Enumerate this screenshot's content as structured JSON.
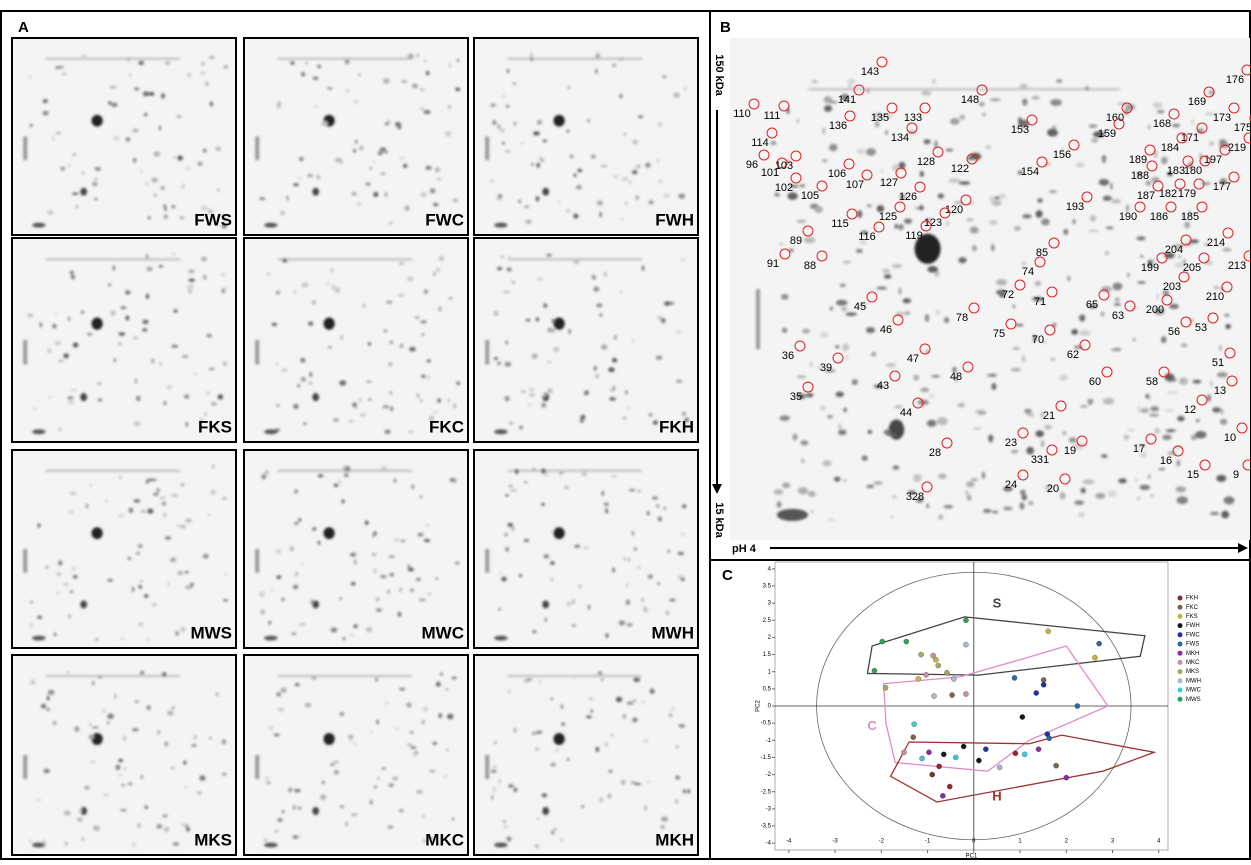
{
  "panel_a": {
    "label": "A",
    "gels": [
      "FWS",
      "FWC",
      "FWH",
      "FKS",
      "FKC",
      "FKH",
      "MWS",
      "MWC",
      "MWH",
      "MKS",
      "MKC",
      "MKH"
    ]
  },
  "panel_b": {
    "label": "B",
    "mw_top": "150 kDa",
    "mw_bottom": "15 kDa",
    "ph_start": "pH 4",
    "spots": [
      "143",
      "148",
      "176",
      "110",
      "111",
      "141",
      "135",
      "133",
      "136",
      "134",
      "169",
      "173",
      "175",
      "168",
      "160",
      "159",
      "153",
      "154",
      "156",
      "114",
      "171",
      "219",
      "184",
      "197",
      "96",
      "128",
      "122",
      "189",
      "188",
      "183",
      "180",
      "101",
      "103",
      "106",
      "102",
      "105",
      "107",
      "127",
      "126",
      "182",
      "179",
      "177",
      "187",
      "193",
      "190",
      "186",
      "185",
      "120",
      "125",
      "123",
      "115",
      "116",
      "119",
      "89",
      "91",
      "88",
      "85",
      "74",
      "214",
      "204",
      "199",
      "205",
      "213",
      "203",
      "72",
      "71",
      "65",
      "63",
      "200",
      "210",
      "45",
      "46",
      "78",
      "75",
      "70",
      "56",
      "53",
      "36",
      "39",
      "47",
      "62",
      "51",
      "43",
      "48",
      "60",
      "58",
      "13",
      "35",
      "44",
      "12",
      "21",
      "10",
      "23",
      "28",
      "19",
      "17",
      "16",
      "331",
      "15",
      "9",
      "24",
      "20",
      "328"
    ]
  },
  "chart_data": {
    "type": "scatter",
    "panel_label": "C",
    "xlabel": "PC1",
    "ylabel": "PC2",
    "xlim": [
      -4.3,
      4.2
    ],
    "ylim": [
      -4.2,
      4.2
    ],
    "xticks": [
      -4,
      -3,
      -2,
      -1,
      0,
      1,
      2,
      3,
      4
    ],
    "yticks": [
      -4,
      -3.5,
      -3,
      -2.5,
      -2,
      -1.5,
      -1,
      -0.5,
      0,
      0.5,
      1,
      1.5,
      2,
      2.5,
      3,
      3.5,
      4
    ],
    "group_labels": [
      "S",
      "C",
      "H"
    ],
    "series": [
      {
        "name": "FKH",
        "color": "#8b2a2a",
        "x": [
          -0.52,
          -0.9,
          -0.75,
          0.9
        ],
        "values": [
          -2.35,
          -2.0,
          -1.76,
          -1.38
        ]
      },
      {
        "name": "FKC",
        "color": "#7a6650",
        "x": [
          -1.31,
          1.78,
          -0.47,
          1.51
        ],
        "values": [
          -0.91,
          -1.74,
          0.32,
          0.76
        ]
      },
      {
        "name": "FKS",
        "color": "#c8b040",
        "x": [
          1.61,
          2.62,
          -1.2,
          -0.82
        ],
        "values": [
          2.18,
          1.41,
          0.79,
          1.35
        ]
      },
      {
        "name": "FWH",
        "color": "#151520",
        "x": [
          -0.22,
          -0.65,
          0.11,
          1.05
        ],
        "values": [
          -1.18,
          -1.41,
          -1.59,
          -0.32
        ]
      },
      {
        "name": "FWC",
        "color": "#2030a8",
        "x": [
          1.51,
          1.59,
          0.26,
          1.35
        ],
        "values": [
          0.62,
          -0.82,
          -1.26,
          0.38
        ]
      },
      {
        "name": "FWS",
        "color": "#2a6aa0",
        "x": [
          2.71,
          2.24,
          0.88,
          1.63
        ],
        "values": [
          1.82,
          0.0,
          0.82,
          -0.94
        ]
      },
      {
        "name": "MKH",
        "color": "#8a2aa8",
        "x": [
          -0.67,
          1.4,
          2.0,
          -0.97
        ],
        "values": [
          -2.62,
          -1.26,
          -2.09,
          -1.35
        ]
      },
      {
        "name": "MKC",
        "color": "#c890a0",
        "x": [
          -1.03,
          -1.51,
          -0.88,
          -0.17
        ],
        "values": [
          0.91,
          -1.35,
          1.47,
          0.35
        ]
      },
      {
        "name": "MKS",
        "color": "#a8a860",
        "x": [
          -1.14,
          -1.91,
          -0.77,
          -0.58
        ],
        "values": [
          1.5,
          0.53,
          1.18,
          0.97
        ]
      },
      {
        "name": "MWH",
        "color": "#a8b8c8",
        "x": [
          -0.86,
          -0.43,
          0.56,
          -0.17
        ],
        "values": [
          0.29,
          0.79,
          -1.79,
          1.79
        ]
      },
      {
        "name": "MWC",
        "color": "#40c8d8",
        "x": [
          -1.29,
          -1.12,
          1.1,
          -0.39
        ],
        "values": [
          -0.53,
          -1.53,
          -1.41,
          -1.5
        ]
      },
      {
        "name": "MWS",
        "color": "#30a060",
        "x": [
          -2.15,
          -0.17,
          -1.46,
          -1.98
        ],
        "values": [
          1.03,
          2.5,
          1.88,
          1.88
        ]
      }
    ]
  }
}
